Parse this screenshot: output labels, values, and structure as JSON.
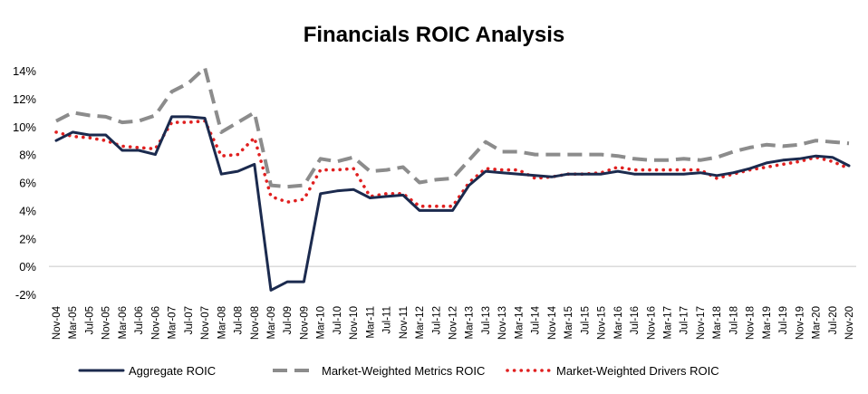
{
  "chart_data": {
    "type": "line",
    "title": "Financials ROIC Analysis",
    "xlabel": "",
    "ylabel": "",
    "ylim": [
      -2,
      14
    ],
    "y_ticks": [
      "-2%",
      "0%",
      "2%",
      "4%",
      "6%",
      "8%",
      "10%",
      "12%",
      "14%"
    ],
    "y_tick_values": [
      -2,
      0,
      2,
      4,
      6,
      8,
      10,
      12,
      14
    ],
    "grid": false,
    "legend_position": "bottom",
    "x": [
      "Nov-04",
      "Mar-05",
      "Jul-05",
      "Nov-05",
      "Mar-06",
      "Jul-06",
      "Nov-06",
      "Mar-07",
      "Jul-07",
      "Nov-07",
      "Mar-08",
      "Jul-08",
      "Nov-08",
      "Mar-09",
      "Jul-09",
      "Nov-09",
      "Mar-10",
      "Jul-10",
      "Nov-10",
      "Mar-11",
      "Jul-11",
      "Nov-11",
      "Mar-12",
      "Jul-12",
      "Nov-12",
      "Mar-13",
      "Jul-13",
      "Nov-13",
      "Mar-14",
      "Jul-14",
      "Nov-14",
      "Mar-15",
      "Jul-15",
      "Nov-15",
      "Mar-16",
      "Jul-16",
      "Nov-16",
      "Mar-17",
      "Jul-17",
      "Nov-17",
      "Mar-18",
      "Jul-18",
      "Nov-18",
      "Mar-19",
      "Jul-19",
      "Nov-19",
      "Mar-20",
      "Jul-20",
      "Nov-20"
    ],
    "series": [
      {
        "name": "Aggregate ROIC",
        "color": "#1b2a4e",
        "style": "solid",
        "values": [
          9.0,
          9.6,
          9.4,
          9.4,
          8.3,
          8.3,
          8.0,
          10.7,
          10.7,
          10.6,
          6.6,
          6.8,
          7.3,
          -1.7,
          -1.1,
          -1.1,
          5.2,
          5.4,
          5.5,
          4.9,
          5.0,
          5.1,
          4.0,
          4.0,
          4.0,
          5.8,
          6.8,
          6.7,
          6.6,
          6.5,
          6.4,
          6.6,
          6.6,
          6.6,
          6.8,
          6.6,
          6.6,
          6.6,
          6.6,
          6.7,
          6.5,
          6.7,
          7.0,
          7.4,
          7.6,
          7.7,
          7.9,
          7.8,
          7.2
        ]
      },
      {
        "name": "Market-Weighted Metrics ROIC",
        "color": "#8c8c8c",
        "style": "dashed",
        "values": [
          10.4,
          11.0,
          10.8,
          10.7,
          10.3,
          10.4,
          10.8,
          12.5,
          13.1,
          14.2,
          9.6,
          10.3,
          11.0,
          5.8,
          5.7,
          5.8,
          7.7,
          7.5,
          7.8,
          6.8,
          6.9,
          7.1,
          6.0,
          6.2,
          6.3,
          7.6,
          8.9,
          8.2,
          8.2,
          8.0,
          8.0,
          8.0,
          8.0,
          8.0,
          7.9,
          7.7,
          7.6,
          7.6,
          7.7,
          7.6,
          7.8,
          8.2,
          8.5,
          8.7,
          8.6,
          8.7,
          9.0,
          8.9,
          8.8
        ]
      },
      {
        "name": "Market-Weighted Drivers ROIC",
        "color": "#e02020",
        "style": "dotted",
        "values": [
          9.6,
          9.3,
          9.2,
          9.0,
          8.6,
          8.5,
          8.4,
          10.3,
          10.3,
          10.4,
          7.9,
          8.0,
          9.2,
          5.0,
          4.6,
          4.8,
          6.9,
          6.9,
          7.0,
          5.0,
          5.2,
          5.2,
          4.3,
          4.3,
          4.3,
          6.0,
          7.0,
          6.9,
          6.9,
          6.3,
          6.4,
          6.6,
          6.6,
          6.7,
          7.1,
          6.9,
          6.9,
          6.9,
          6.9,
          6.9,
          6.3,
          6.6,
          6.9,
          7.1,
          7.3,
          7.5,
          7.8,
          7.5,
          7.0
        ]
      }
    ]
  }
}
